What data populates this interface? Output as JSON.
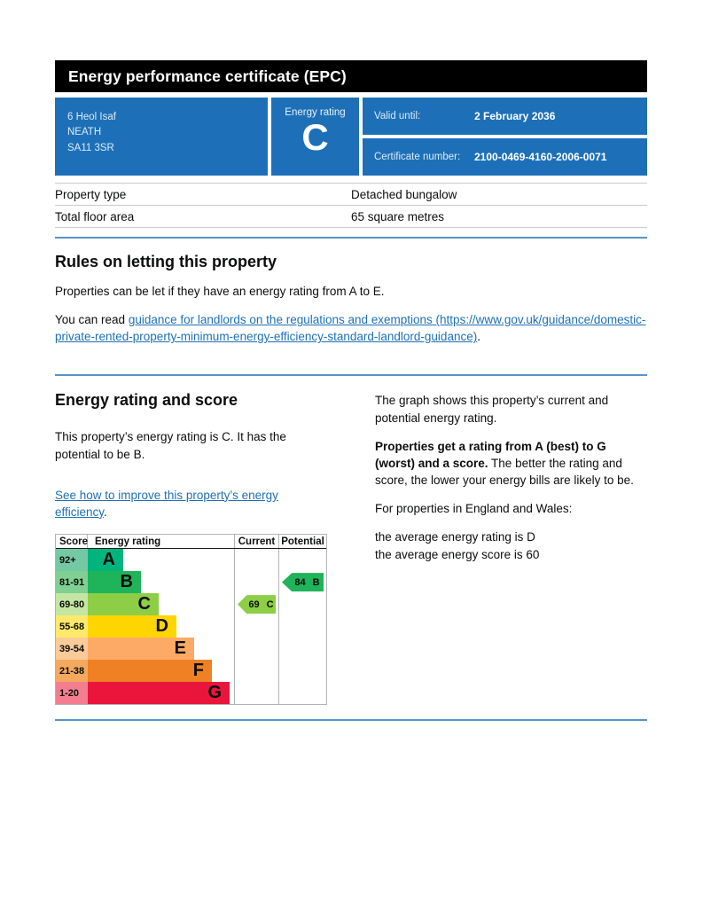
{
  "header": {
    "title": "Energy performance certificate (EPC)"
  },
  "summary": {
    "address_lines": [
      "6 Heol Isaf",
      "NEATH",
      "SA11 3SR"
    ],
    "energy_rating_label": "Energy rating",
    "energy_rating_value": "C",
    "valid_until_label": "Valid until:",
    "valid_until_value": "2 February 2036",
    "certificate_number_label": "Certificate number:",
    "certificate_number_value": "2100-0469-4160-2006-0071"
  },
  "property_details": {
    "rows": [
      {
        "label": "Property type",
        "value": "Detached bungalow"
      },
      {
        "label": "Total floor area",
        "value": "65 square metres"
      }
    ]
  },
  "rules_section": {
    "heading": "Rules on letting this property",
    "paragraph1": "Properties can be let if they have an energy rating from A to E.",
    "paragraph2_prefix": "You can read ",
    "paragraph2_link": "guidance for landlords on the regulations and exemptions (https://www.gov.uk/guidance/domestic-private-rented-property-minimum-energy-efficiency-standard-landlord-guidance)",
    "paragraph2_suffix": "."
  },
  "rating_section": {
    "heading": "Energy rating and score",
    "summary_text": "This property’s energy rating is C. It has the potential to be B.",
    "improve_link": "See how to improve this property’s energy efficiency",
    "improve_link_suffix": ".",
    "right_paragraph1": "The graph shows this property’s current and potential energy rating.",
    "right_paragraph2_bold": "Properties get a rating from A (best) to G (worst) and a score.",
    "right_paragraph2_rest": " The better the rating and score, the lower your energy bills are likely to be.",
    "right_paragraph3": "For properties in England and Wales:",
    "right_line1": "the average energy rating is D",
    "right_line2": "the average energy score is 60"
  },
  "chart_data": {
    "type": "bar",
    "title": "Energy rating and score graph",
    "columns": [
      "Score",
      "Energy rating",
      "Current",
      "Potential"
    ],
    "legend_position": "none",
    "grid": false,
    "bands": [
      {
        "score_range": "92+",
        "letter": "A",
        "band_color": "#00b47d",
        "score_tint": "#74c9a4"
      },
      {
        "score_range": "81-91",
        "letter": "B",
        "band_color": "#1fb35a",
        "score_tint": "#7fd092"
      },
      {
        "score_range": "69-80",
        "letter": "C",
        "band_color": "#8dce46",
        "score_tint": "#c5e6a2"
      },
      {
        "score_range": "55-68",
        "letter": "D",
        "band_color": "#ffd500",
        "score_tint": "#ffe96a"
      },
      {
        "score_range": "39-54",
        "letter": "E",
        "band_color": "#fcaa65",
        "score_tint": "#fbca98"
      },
      {
        "score_range": "21-38",
        "letter": "F",
        "band_color": "#ef8023",
        "score_tint": "#f4a95e"
      },
      {
        "score_range": "1-20",
        "letter": "G",
        "band_color": "#e9153b",
        "score_tint": "#f37e90"
      }
    ],
    "current": {
      "score": "69",
      "band": "C",
      "row_index": 2,
      "arrow_color": "#8dce46"
    },
    "potential": {
      "score": "84",
      "band": "B",
      "row_index": 1,
      "arrow_color": "#1fb35a"
    }
  },
  "colors": {
    "govuk_blue": "#1d70b8",
    "divider_blue": "#5694ca",
    "header_bar": "#000000",
    "text": "#0b0c0c",
    "table_border": "#c8cacc"
  }
}
